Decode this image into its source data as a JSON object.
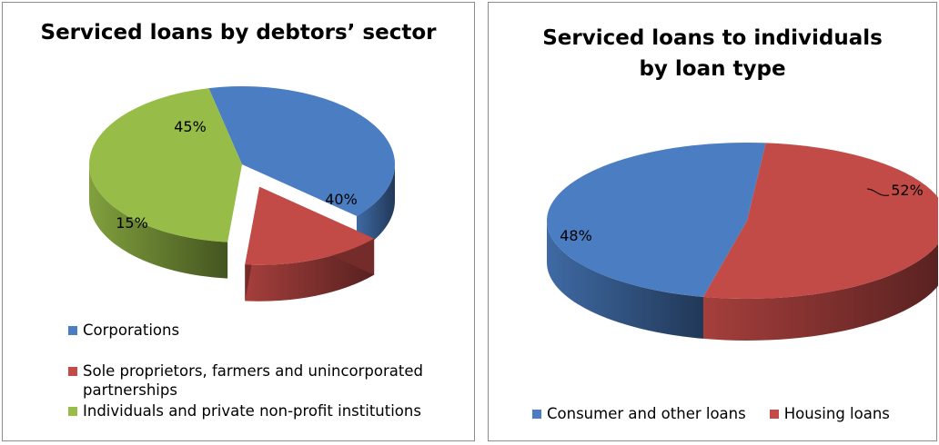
{
  "chart_data": [
    {
      "type": "pie",
      "title": "Serviced loans by debtors’ sector",
      "categories": [
        "Corporations",
        "Sole proprietors, farmers and unincorporated partnerships",
        "Individuals and private non-profit institutions"
      ],
      "values": [
        40,
        15,
        45
      ],
      "labels": [
        "40%",
        "15%",
        "45%"
      ],
      "colors": [
        "#4a7dc1",
        "#c24a47",
        "#98bc48"
      ],
      "legend_position": "bottom",
      "exploded": [
        false,
        true,
        false
      ]
    },
    {
      "type": "pie",
      "title": [
        "Serviced loans to individuals",
        "by loan type"
      ],
      "categories": [
        "Consumer and other loans",
        "Housing loans"
      ],
      "values": [
        48,
        52
      ],
      "labels": [
        "48%",
        "52%"
      ],
      "colors": [
        "#4a7dc1",
        "#c24a47"
      ],
      "legend_position": "bottom"
    }
  ]
}
